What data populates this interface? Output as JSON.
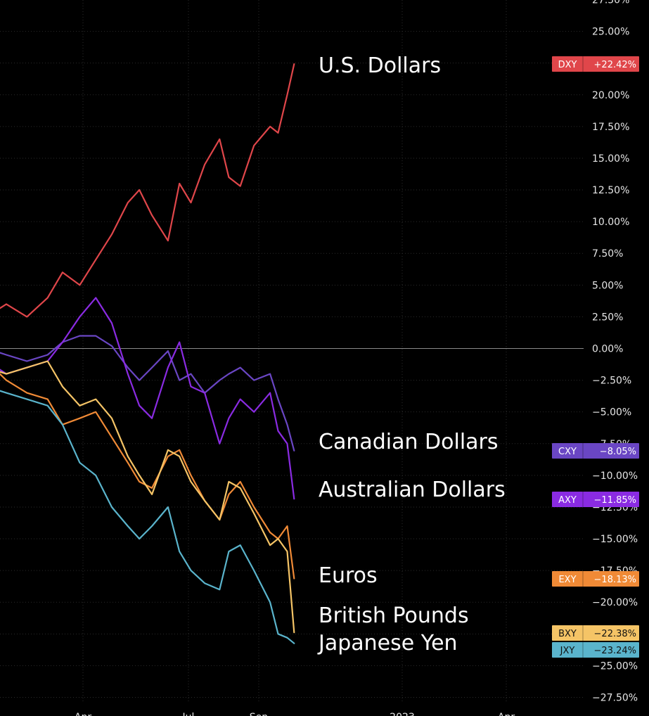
{
  "chart_data": {
    "type": "line",
    "y_unit": "%",
    "ylim": [
      -27.5,
      27.5
    ],
    "y_ticks": [
      "27.50%",
      "25.00%",
      "22.50%",
      "20.00%",
      "17.50%",
      "15.00%",
      "12.50%",
      "10.00%",
      "7.50%",
      "5.00%",
      "2.50%",
      "0.00%",
      "−2.50%",
      "−5.00%",
      "−7.50%",
      "−10.00%",
      "−12.50%",
      "−15.00%",
      "−17.50%",
      "−20.00%",
      "−22.50%",
      "−25.00%",
      "−27.50%"
    ],
    "x_ticks": [
      "Apr",
      "Jul",
      "Sep",
      "2023",
      "Apr"
    ],
    "grid": true,
    "series": [
      {
        "name": "U.S. Dollars",
        "ticker": "DXY",
        "value_label": "+22.42%",
        "color": "#e0464a",
        "x": [
          "2022-01-03",
          "2022-01-20",
          "2022-02-07",
          "2022-02-25",
          "2022-03-10",
          "2022-03-25",
          "2022-04-08",
          "2022-04-22",
          "2022-05-06",
          "2022-05-16",
          "2022-05-27",
          "2022-06-10",
          "2022-06-20",
          "2022-06-30",
          "2022-07-12",
          "2022-07-25",
          "2022-08-02",
          "2022-08-12",
          "2022-08-24",
          "2022-09-07",
          "2022-09-14",
          "2022-09-22",
          "2022-09-28"
        ],
        "values": [
          2.5,
          3.5,
          2.5,
          4.0,
          6.0,
          5.0,
          7.0,
          9.0,
          11.5,
          12.5,
          10.5,
          8.5,
          13.0,
          11.5,
          14.5,
          16.5,
          13.5,
          12.8,
          16.0,
          17.5,
          17.0,
          20.0,
          22.42
        ]
      },
      {
        "name": "Canadian Dollars",
        "ticker": "CXY",
        "value_label": "−8.05%",
        "color": "#6a46c4",
        "x": [
          "2022-01-03",
          "2022-01-20",
          "2022-02-07",
          "2022-02-25",
          "2022-03-10",
          "2022-03-25",
          "2022-04-08",
          "2022-04-22",
          "2022-05-06",
          "2022-05-16",
          "2022-05-27",
          "2022-06-10",
          "2022-06-20",
          "2022-06-30",
          "2022-07-12",
          "2022-07-25",
          "2022-08-02",
          "2022-08-12",
          "2022-08-24",
          "2022-09-07",
          "2022-09-14",
          "2022-09-22",
          "2022-09-28"
        ],
        "values": [
          0.0,
          -0.5,
          -1.0,
          -0.5,
          0.5,
          1.0,
          1.0,
          0.2,
          -1.5,
          -2.5,
          -1.5,
          -0.2,
          -2.5,
          -2.0,
          -3.5,
          -2.5,
          -2.0,
          -1.5,
          -2.5,
          -2.0,
          -4.0,
          -6.0,
          -8.05
        ]
      },
      {
        "name": "Australian Dollars",
        "ticker": "AXY",
        "value_label": "−11.85%",
        "color": "#8a2be2",
        "x": [
          "2022-01-03",
          "2022-01-20",
          "2022-02-07",
          "2022-02-25",
          "2022-03-10",
          "2022-03-25",
          "2022-04-08",
          "2022-04-22",
          "2022-05-06",
          "2022-05-16",
          "2022-05-27",
          "2022-06-10",
          "2022-06-20",
          "2022-06-30",
          "2022-07-12",
          "2022-07-25",
          "2022-08-02",
          "2022-08-12",
          "2022-08-24",
          "2022-09-07",
          "2022-09-14",
          "2022-09-22",
          "2022-09-28"
        ],
        "values": [
          -1.0,
          -2.0,
          -1.5,
          -1.0,
          0.5,
          2.5,
          4.0,
          2.0,
          -2.0,
          -4.5,
          -5.5,
          -1.5,
          0.5,
          -3.0,
          -3.5,
          -7.5,
          -5.5,
          -4.0,
          -5.0,
          -3.5,
          -6.5,
          -7.5,
          -11.85
        ]
      },
      {
        "name": "Euros",
        "ticker": "EXY",
        "value_label": "−18.13%",
        "color": "#f08a36",
        "x": [
          "2022-01-03",
          "2022-01-20",
          "2022-02-07",
          "2022-02-25",
          "2022-03-10",
          "2022-03-25",
          "2022-04-08",
          "2022-04-22",
          "2022-05-06",
          "2022-05-16",
          "2022-05-27",
          "2022-06-10",
          "2022-06-20",
          "2022-06-30",
          "2022-07-12",
          "2022-07-25",
          "2022-08-02",
          "2022-08-12",
          "2022-08-24",
          "2022-09-07",
          "2022-09-14",
          "2022-09-22",
          "2022-09-28"
        ],
        "values": [
          -1.0,
          -2.5,
          -3.5,
          -4.0,
          -6.0,
          -5.5,
          -5.0,
          -7.0,
          -9.0,
          -10.5,
          -11.0,
          -8.5,
          -8.0,
          -10.0,
          -12.0,
          -13.5,
          -11.5,
          -10.5,
          -12.5,
          -14.5,
          -15.0,
          -14.0,
          -18.13
        ]
      },
      {
        "name": "British Pounds",
        "ticker": "BXY",
        "value_label": "−22.38%",
        "color": "#f5c466",
        "x": [
          "2022-01-03",
          "2022-01-20",
          "2022-02-07",
          "2022-02-25",
          "2022-03-10",
          "2022-03-25",
          "2022-04-08",
          "2022-04-22",
          "2022-05-06",
          "2022-05-16",
          "2022-05-27",
          "2022-06-10",
          "2022-06-20",
          "2022-06-30",
          "2022-07-12",
          "2022-07-25",
          "2022-08-02",
          "2022-08-12",
          "2022-08-24",
          "2022-09-07",
          "2022-09-14",
          "2022-09-22",
          "2022-09-28"
        ],
        "values": [
          -1.5,
          -2.0,
          -1.5,
          -1.0,
          -3.0,
          -4.5,
          -4.0,
          -5.5,
          -8.5,
          -10.0,
          -11.5,
          -8.0,
          -8.5,
          -10.5,
          -12.0,
          -13.5,
          -10.5,
          -11.0,
          -13.0,
          -15.5,
          -15.0,
          -16.0,
          -22.38
        ]
      },
      {
        "name": "Japanese Yen",
        "ticker": "JXY",
        "value_label": "−23.24%",
        "color": "#5ab4cc",
        "x": [
          "2022-01-03",
          "2022-01-20",
          "2022-02-07",
          "2022-02-25",
          "2022-03-10",
          "2022-03-25",
          "2022-04-08",
          "2022-04-22",
          "2022-05-06",
          "2022-05-16",
          "2022-05-27",
          "2022-06-10",
          "2022-06-20",
          "2022-06-30",
          "2022-07-12",
          "2022-07-25",
          "2022-08-02",
          "2022-08-12",
          "2022-08-24",
          "2022-09-07",
          "2022-09-14",
          "2022-09-22",
          "2022-09-28"
        ],
        "values": [
          -3.0,
          -3.5,
          -4.0,
          -4.5,
          -6.0,
          -9.0,
          -10.0,
          -12.5,
          -14.0,
          -15.0,
          -14.0,
          -12.5,
          -16.0,
          -17.5,
          -18.5,
          -19.0,
          -16.0,
          -15.5,
          -17.5,
          -20.0,
          -22.5,
          -22.8,
          -23.24
        ]
      }
    ]
  }
}
